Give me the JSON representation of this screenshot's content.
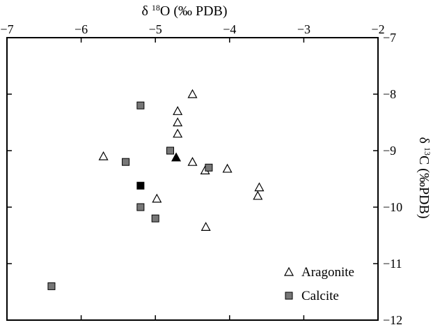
{
  "chart_data": {
    "type": "scatter",
    "xlabel": {
      "prefix": "δ ",
      "sup": "18",
      "rest": "O (‰ PDB)"
    },
    "ylabel": {
      "prefix": "δ ",
      "sup": "13",
      "rest": "C (‰PDB)"
    },
    "xlim": [
      -7,
      -2
    ],
    "ylim": [
      -12,
      -7
    ],
    "y_reversed": true,
    "x_axis_position": "top",
    "y_axis_position": "right",
    "grid": false,
    "legend_placement": "bottom-right",
    "x_ticks": [
      -7,
      -6,
      -5,
      -4,
      -3,
      -2
    ],
    "y_ticks": [
      -7,
      -8,
      -9,
      -10,
      -11,
      -12
    ],
    "series": [
      {
        "name": "Aragonite",
        "marker": "triangle-open",
        "color": "#000000",
        "points": [
          {
            "x": -4.5,
            "y": -8.0
          },
          {
            "x": -4.7,
            "y": -8.3
          },
          {
            "x": -4.7,
            "y": -8.5
          },
          {
            "x": -4.7,
            "y": -8.7
          },
          {
            "x": -5.7,
            "y": -9.1
          },
          {
            "x": -4.5,
            "y": -9.2
          },
          {
            "x": -4.33,
            "y": -9.35
          },
          {
            "x": -4.03,
            "y": -9.32
          },
          {
            "x": -3.6,
            "y": -9.65
          },
          {
            "x": -3.62,
            "y": -9.8
          },
          {
            "x": -4.98,
            "y": -9.85
          },
          {
            "x": -4.32,
            "y": -10.35
          }
        ]
      },
      {
        "name": "Calcite",
        "marker": "square",
        "color": "#777777",
        "points": [
          {
            "x": -5.2,
            "y": -8.2
          },
          {
            "x": -4.8,
            "y": -9.0
          },
          {
            "x": -5.4,
            "y": -9.2
          },
          {
            "x": -4.28,
            "y": -9.3
          },
          {
            "x": -5.2,
            "y": -10.0
          },
          {
            "x": -5.0,
            "y": -10.2
          },
          {
            "x": -6.4,
            "y": -11.4
          }
        ]
      },
      {
        "marker": "triangle-filled",
        "color": "#000000",
        "points": [
          {
            "x": -4.72,
            "y": -9.12
          }
        ]
      },
      {
        "marker": "square",
        "color": "#000000",
        "points": [
          {
            "x": -5.2,
            "y": -9.62
          }
        ]
      }
    ]
  }
}
